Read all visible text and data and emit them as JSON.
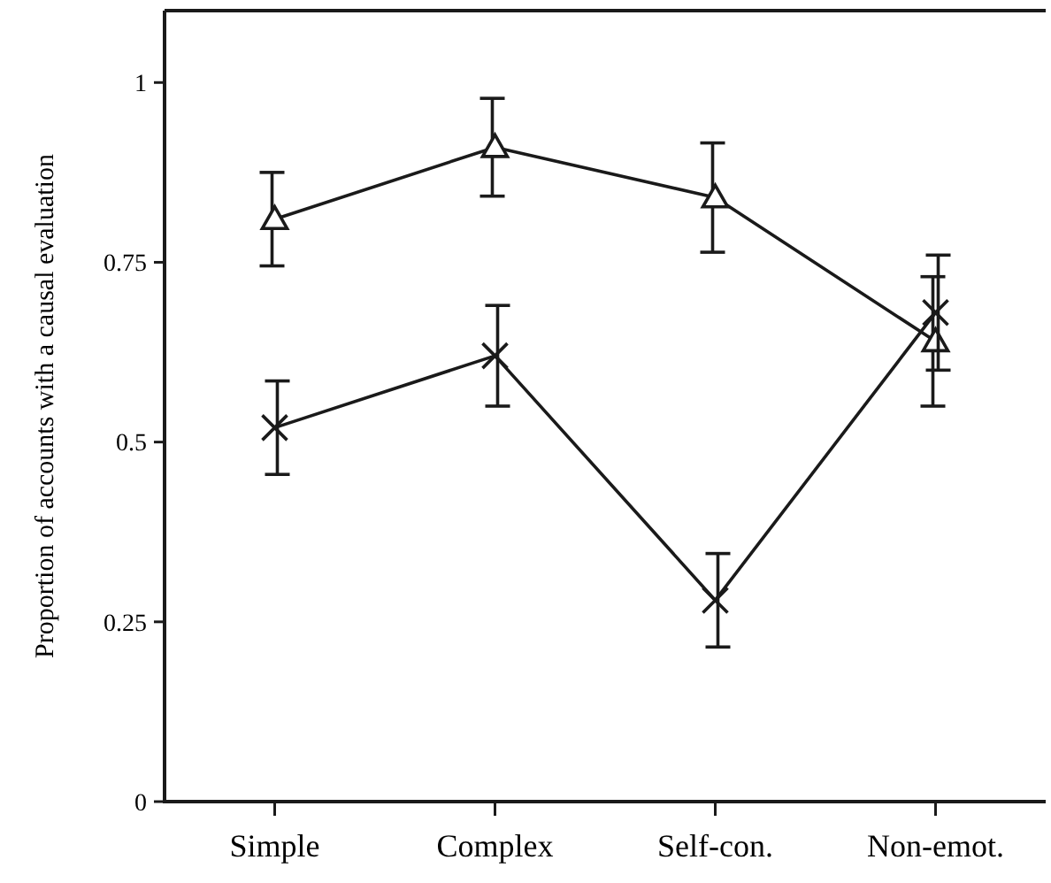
{
  "chart_data": {
    "type": "line",
    "ylabel": "Proportion of accounts with a causal evaluation",
    "categories": [
      "Simple",
      "Complex",
      "Self-con.",
      "Non-emot."
    ],
    "series": [
      {
        "color": "#1a1a1a",
        "marker": "triangle",
        "values": [
          0.81,
          0.91,
          0.84,
          0.64
        ],
        "errors": [
          0.065,
          0.068,
          0.076,
          0.09
        ]
      },
      {
        "color": "#1a1a1a",
        "marker": "cross",
        "values": [
          0.52,
          0.62,
          0.28,
          0.68
        ],
        "errors": [
          0.065,
          0.07,
          0.065,
          0.08
        ]
      }
    ],
    "ylim": [
      0,
      1.1
    ],
    "yticks": [
      0,
      0.25,
      0.5,
      0.75,
      1
    ],
    "grid": false,
    "line_style": "solid"
  }
}
